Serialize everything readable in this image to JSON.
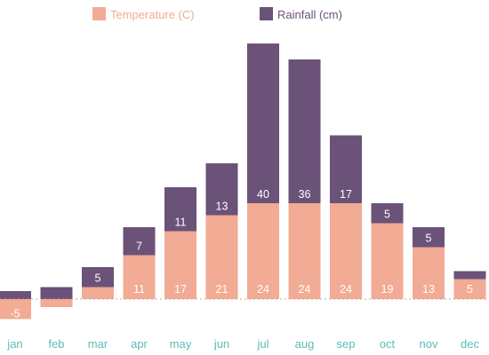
{
  "chart_data": {
    "type": "bar",
    "stacked": true,
    "categories": [
      "jan",
      "feb",
      "mar",
      "apr",
      "may",
      "jun",
      "jul",
      "aug",
      "sep",
      "oct",
      "nov",
      "dec"
    ],
    "series": [
      {
        "name": "Temperature (C)",
        "color": "#f2ab94",
        "values": [
          -5,
          -2,
          3,
          11,
          17,
          21,
          24,
          24,
          24,
          19,
          13,
          5
        ],
        "labels": [
          "-5",
          "",
          "",
          "11",
          "17",
          "21",
          "24",
          "24",
          "24",
          "19",
          "13",
          "5"
        ]
      },
      {
        "name": "Rainfall (cm)",
        "color": "#6b5278",
        "values": [
          2,
          3,
          5,
          7,
          11,
          13,
          40,
          36,
          17,
          5,
          5,
          2
        ],
        "labels": [
          "",
          "",
          "5",
          "7",
          "11",
          "13",
          "40",
          "36",
          "17",
          "5",
          "5",
          ""
        ]
      }
    ],
    "ylim": [
      -5.5,
      65
    ],
    "grid": false,
    "zero_line": "dotted",
    "legend_position": "top",
    "tick_color": "#5bbcb4",
    "legend_text_colors": [
      "#f2ab94",
      "#6b5278"
    ]
  }
}
